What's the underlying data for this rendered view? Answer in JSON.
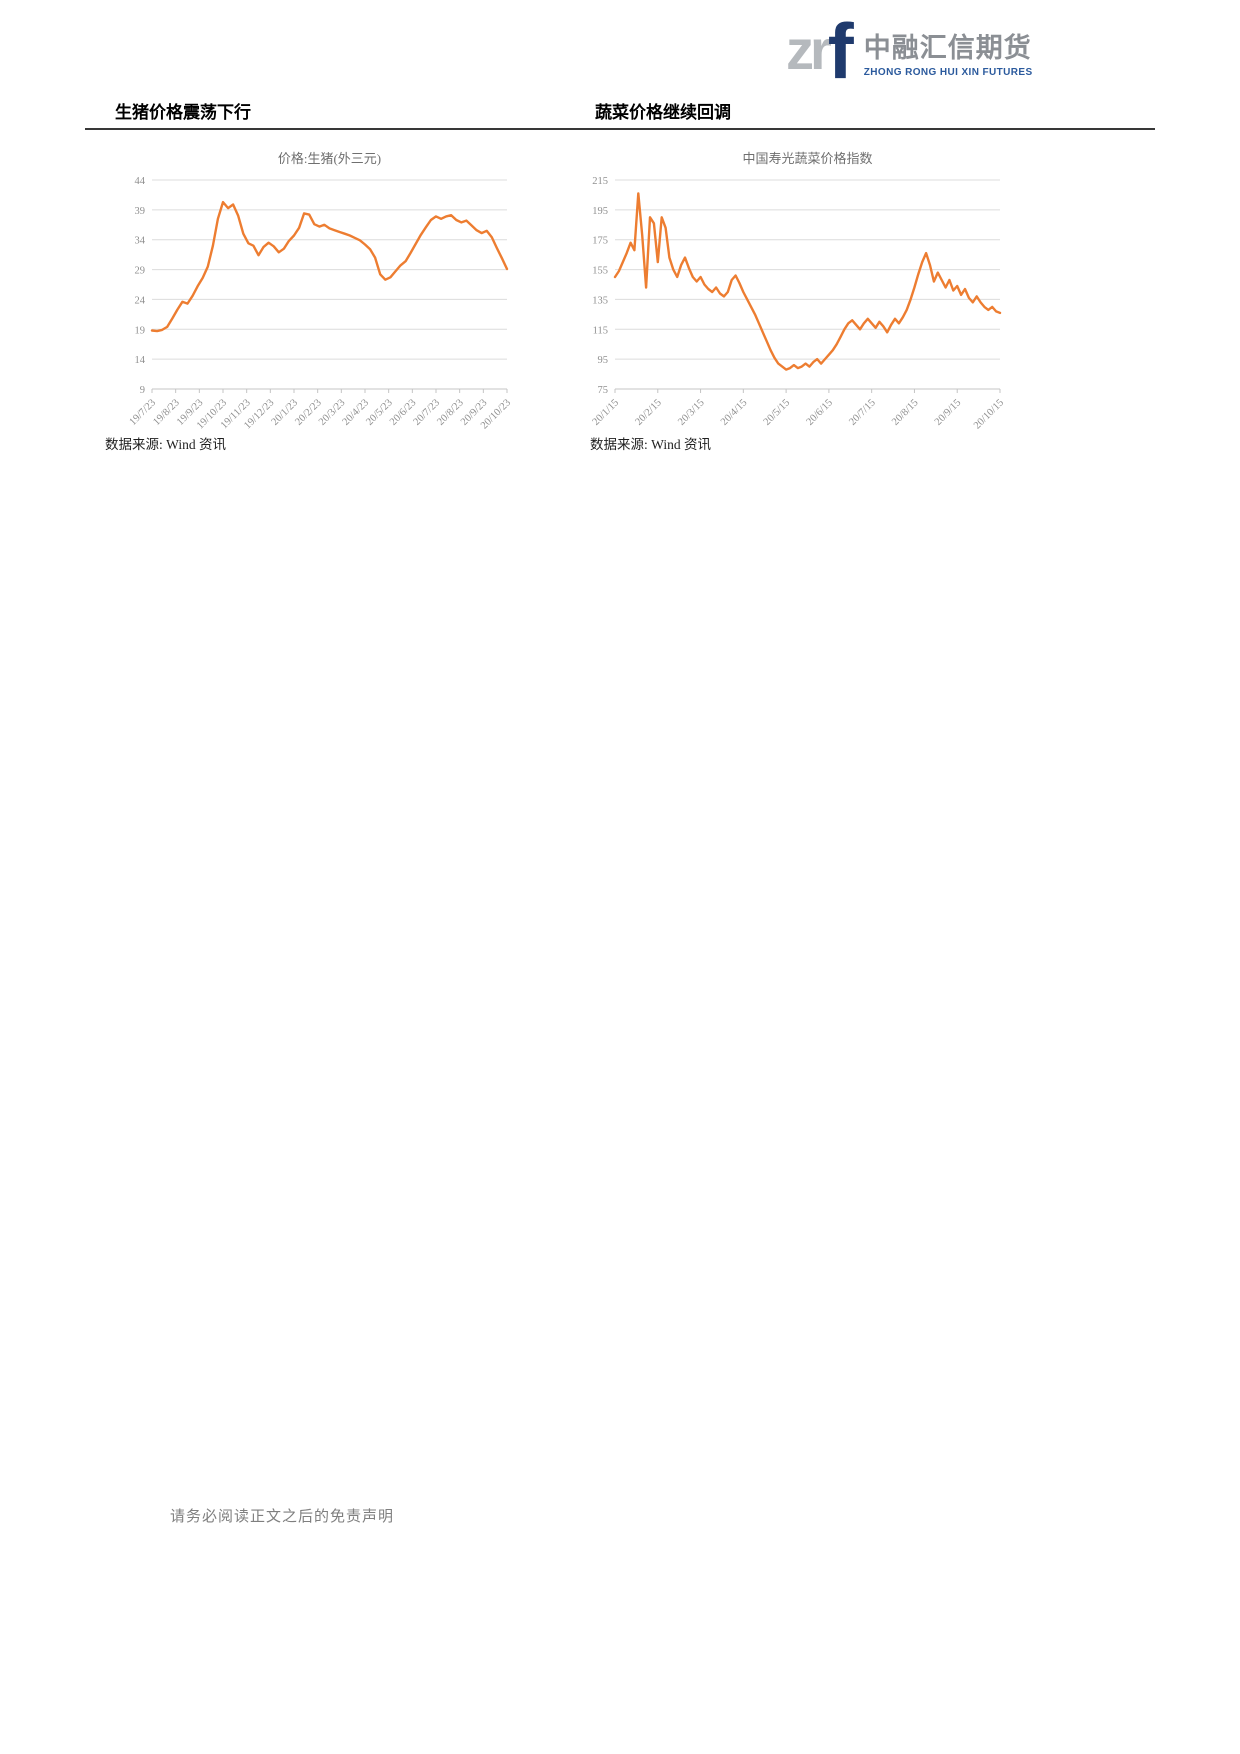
{
  "logo": {
    "zr": "zr",
    "f": "f",
    "cn": "中融汇信期货",
    "en": "ZHONG RONG HUI XIN FUTURES"
  },
  "sections": {
    "left_header": "生猪价格震荡下行",
    "right_header": "蔬菜价格继续回调"
  },
  "sources": {
    "left": "数据来源: Wind 资讯",
    "right": "数据来源: Wind 资讯"
  },
  "footer": "请务必阅读正文之后的免责声明",
  "colors": {
    "line": "#ED7D31",
    "grid": "#DCDCDC",
    "axis_text": "#8F8F8F",
    "chart_title": "#6F6F6F",
    "logo_navy": "#1F3A6D",
    "logo_gray": "#B5B9BD",
    "logo_en_blue": "#2B5A9D",
    "divider": "#383838"
  },
  "chart_data": [
    {
      "type": "line",
      "title": "价格:生猪(外三元)",
      "ylabel": "",
      "xlabel": "",
      "ylim": [
        9,
        44
      ],
      "y_ticks": [
        44,
        39,
        34,
        29,
        24,
        19,
        14,
        9
      ],
      "grid": true,
      "legend_position": "none",
      "line_color": "#ED7D31",
      "x_ticks": [
        "19/7/23",
        "19/8/23",
        "19/9/23",
        "19/10/23",
        "19/11/23",
        "19/12/23",
        "20/1/23",
        "20/2/23",
        "20/3/23",
        "20/4/23",
        "20/5/23",
        "20/6/23",
        "20/7/23",
        "20/8/23",
        "20/9/23",
        "20/10/23"
      ],
      "values": [
        18.8,
        18.7,
        18.9,
        19.4,
        20.8,
        22.3,
        23.6,
        23.3,
        24.6,
        26.2,
        27.6,
        29.5,
        33.0,
        37.5,
        40.3,
        39.3,
        39.9,
        38.0,
        35.0,
        33.4,
        33.0,
        31.4,
        32.8,
        33.5,
        32.9,
        31.9,
        32.5,
        33.8,
        34.7,
        36.0,
        38.4,
        38.2,
        36.6,
        36.2,
        36.5,
        35.9,
        35.6,
        35.3,
        35.0,
        34.7,
        34.3,
        33.9,
        33.2,
        32.4,
        31.0,
        28.2,
        27.3,
        27.7,
        28.7,
        29.7,
        30.4,
        31.8,
        33.3,
        34.8,
        36.1,
        37.3,
        37.9,
        37.5,
        37.9,
        38.1,
        37.3,
        36.9,
        37.2,
        36.4,
        35.6,
        35.1,
        35.5,
        34.4,
        32.6,
        30.9,
        29.1
      ]
    },
    {
      "type": "line",
      "title": "中国寿光蔬菜价格指数",
      "ylabel": "",
      "xlabel": "",
      "ylim": [
        75,
        215
      ],
      "y_ticks": [
        215,
        195,
        175,
        155,
        135,
        115,
        95,
        75
      ],
      "grid": true,
      "legend_position": "none",
      "line_color": "#ED7D31",
      "x_ticks": [
        "20/1/15",
        "20/2/15",
        "20/3/15",
        "20/4/15",
        "20/5/15",
        "20/6/15",
        "20/7/15",
        "20/8/15",
        "20/9/15",
        "20/10/15"
      ],
      "values": [
        150,
        154,
        160,
        166,
        173,
        168,
        206,
        178,
        143,
        190,
        186,
        160,
        190,
        183,
        163,
        155,
        150,
        158,
        163,
        156,
        150,
        147,
        150,
        145,
        142,
        140,
        143,
        139,
        137,
        140,
        148,
        151,
        146,
        140,
        135,
        130,
        125,
        119,
        113,
        107,
        101,
        96,
        92,
        90,
        88,
        89,
        91,
        89,
        90,
        92,
        90,
        93,
        95,
        92,
        95,
        98,
        101,
        105,
        110,
        115,
        119,
        121,
        118,
        115,
        119,
        122,
        119,
        116,
        120,
        117,
        113,
        118,
        122,
        119,
        123,
        128,
        135,
        143,
        152,
        160,
        166,
        158,
        147,
        153,
        148,
        143,
        148,
        141,
        144,
        138,
        142,
        136,
        133,
        137,
        133,
        130,
        128,
        130,
        127,
        126
      ]
    }
  ]
}
